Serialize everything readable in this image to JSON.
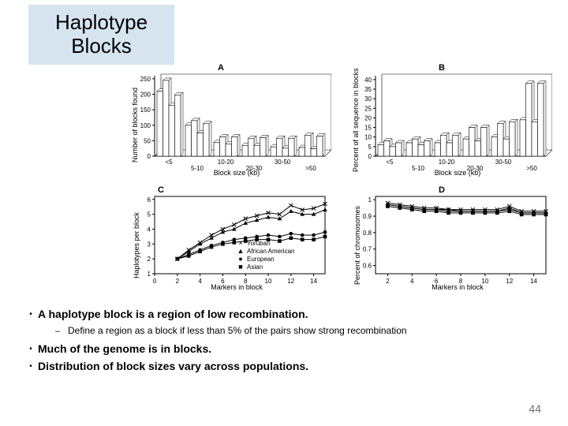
{
  "title": "Haplotype Blocks",
  "page_number": "44",
  "bullets": {
    "main": [
      "A haplotype block is a region of low recombination.",
      "Much of the genome is in blocks.",
      "Distribution of block sizes vary across populations."
    ],
    "sub_after_0": "Define a region as a block if less than 5% of the pairs show strong recombination"
  },
  "colors": {
    "title_band": "#d6e4f0",
    "bg": "#ffffff",
    "axis": "#000000",
    "page_num": "#707070"
  },
  "panels": {
    "A": {
      "label": "A",
      "type": "bar",
      "ylabel": "Number of blocks found",
      "xlabel": "Block size (kb)",
      "categories": [
        "<5",
        "5-10",
        "10-20",
        "20-30",
        "30-50",
        ">50"
      ],
      "yticks": [
        0,
        50,
        100,
        150,
        200,
        250
      ],
      "ylim": [
        0,
        260
      ],
      "series_count": 4,
      "values": [
        [
          210,
          245,
          165,
          198
        ],
        [
          100,
          115,
          75,
          105
        ],
        [
          45,
          62,
          40,
          62
        ],
        [
          35,
          58,
          35,
          60
        ],
        [
          30,
          58,
          26,
          58
        ],
        [
          28,
          68,
          24,
          65
        ]
      ],
      "bar_fill": "#ffffff",
      "bar_stroke": "#000000"
    },
    "B": {
      "label": "B",
      "type": "bar",
      "ylabel": "Percent of all sequence in blocks",
      "xlabel": "Block size (kb)",
      "categories": [
        "<5",
        "5-10",
        "10-20",
        "20-30",
        "30-50",
        ">50"
      ],
      "yticks": [
        0,
        5,
        10,
        15,
        20,
        25,
        30,
        35,
        40
      ],
      "ylim": [
        0,
        42
      ],
      "series_count": 4,
      "values": [
        [
          6,
          8,
          5,
          7
        ],
        [
          7,
          9,
          6,
          8
        ],
        [
          7,
          11,
          7,
          11
        ],
        [
          9,
          15,
          8,
          15
        ],
        [
          10,
          17,
          9,
          18
        ],
        [
          19,
          38,
          18,
          38
        ]
      ],
      "bar_fill": "#ffffff",
      "bar_stroke": "#000000"
    },
    "C": {
      "label": "C",
      "type": "line",
      "ylabel": "Haplotypes per block",
      "xlabel": "Markers in block",
      "xticks": [
        0,
        2,
        4,
        6,
        8,
        10,
        12,
        14
      ],
      "yticks": [
        1,
        2,
        3,
        4,
        5,
        6
      ],
      "xlim": [
        0,
        15
      ],
      "ylim": [
        1,
        6.2
      ],
      "series": [
        {
          "name": "Yoruban",
          "marker": "x",
          "x": [
            2,
            3,
            4,
            5,
            6,
            7,
            8,
            9,
            10,
            11,
            12,
            13,
            14,
            15
          ],
          "y": [
            2.0,
            2.6,
            3.1,
            3.6,
            4.0,
            4.3,
            4.7,
            4.9,
            5.1,
            5.0,
            5.6,
            5.3,
            5.4,
            5.7
          ]
        },
        {
          "name": "African American",
          "marker": "triangle",
          "x": [
            2,
            3,
            4,
            5,
            6,
            7,
            8,
            9,
            10,
            11,
            12,
            13,
            14,
            15
          ],
          "y": [
            2.0,
            2.5,
            3.0,
            3.4,
            3.8,
            4.0,
            4.4,
            4.6,
            4.8,
            4.7,
            5.2,
            5.0,
            5.0,
            5.3
          ]
        },
        {
          "name": "European",
          "marker": "circle",
          "x": [
            2,
            3,
            4,
            5,
            6,
            7,
            8,
            9,
            10,
            11,
            12,
            13,
            14,
            15
          ],
          "y": [
            2.0,
            2.3,
            2.6,
            2.9,
            3.1,
            3.3,
            3.4,
            3.5,
            3.6,
            3.5,
            3.7,
            3.6,
            3.6,
            3.8
          ]
        },
        {
          "name": "Asian",
          "marker": "square",
          "x": [
            2,
            3,
            4,
            5,
            6,
            7,
            8,
            9,
            10,
            11,
            12,
            13,
            14,
            15
          ],
          "y": [
            2.0,
            2.2,
            2.5,
            2.8,
            3.0,
            3.1,
            3.2,
            3.3,
            3.3,
            3.2,
            3.4,
            3.3,
            3.3,
            3.5
          ]
        }
      ],
      "line_color": "#000000",
      "legend": [
        "Yoruban",
        "African American",
        "European",
        "Asian"
      ],
      "legend_markers": [
        "×",
        "▲",
        "●",
        "■"
      ]
    },
    "D": {
      "label": "D",
      "type": "line",
      "ylabel": "Percent of chromosomes",
      "xlabel": "Markers in block",
      "xticks": [
        2,
        4,
        6,
        8,
        10,
        12,
        14
      ],
      "yticks": [
        0.6,
        0.7,
        0.8,
        0.9,
        1
      ],
      "xlim": [
        1,
        15
      ],
      "ylim": [
        0.55,
        1.02
      ],
      "series": [
        {
          "name": "Yoruban",
          "marker": "x",
          "x": [
            2,
            3,
            4,
            5,
            6,
            7,
            8,
            9,
            10,
            11,
            12,
            13,
            14,
            15
          ],
          "y": [
            0.98,
            0.97,
            0.96,
            0.95,
            0.95,
            0.94,
            0.94,
            0.94,
            0.94,
            0.94,
            0.96,
            0.93,
            0.93,
            0.93
          ]
        },
        {
          "name": "African American",
          "marker": "triangle",
          "x": [
            2,
            3,
            4,
            5,
            6,
            7,
            8,
            9,
            10,
            11,
            12,
            13,
            14,
            15
          ],
          "y": [
            0.97,
            0.96,
            0.95,
            0.94,
            0.94,
            0.93,
            0.93,
            0.93,
            0.93,
            0.93,
            0.95,
            0.92,
            0.92,
            0.92
          ]
        },
        {
          "name": "European",
          "marker": "circle",
          "x": [
            2,
            3,
            4,
            5,
            6,
            7,
            8,
            9,
            10,
            11,
            12,
            13,
            14,
            15
          ],
          "y": [
            0.97,
            0.96,
            0.95,
            0.94,
            0.94,
            0.94,
            0.93,
            0.93,
            0.93,
            0.93,
            0.94,
            0.92,
            0.92,
            0.92
          ]
        },
        {
          "name": "Asian",
          "marker": "square",
          "x": [
            2,
            3,
            4,
            5,
            6,
            7,
            8,
            9,
            10,
            11,
            12,
            13,
            14,
            15
          ],
          "y": [
            0.96,
            0.95,
            0.94,
            0.93,
            0.93,
            0.92,
            0.92,
            0.92,
            0.92,
            0.92,
            0.93,
            0.91,
            0.91,
            0.91
          ]
        }
      ],
      "line_color": "#000000"
    }
  }
}
